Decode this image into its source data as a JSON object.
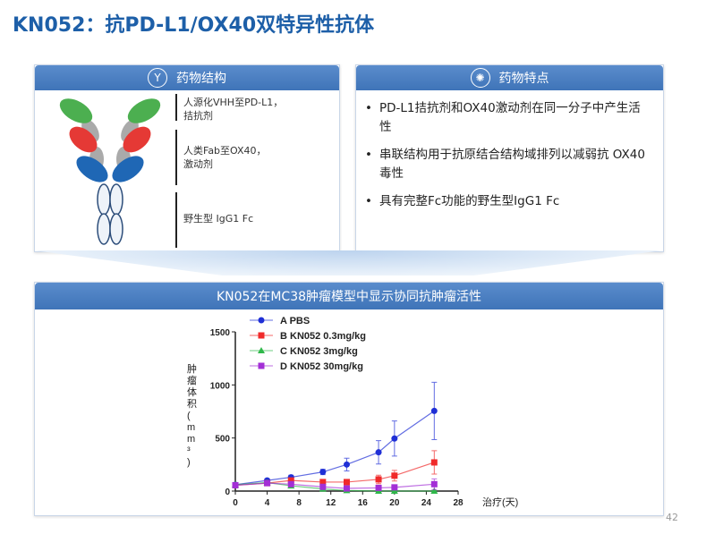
{
  "title": "KN052：抗PD-L1/OX40双特异性抗体",
  "left_panel": {
    "header": "药物结构",
    "icon": "antibody-icon",
    "labels": [
      "人源化VHH至PD-L1，\n拮抗剂",
      "人类Fab至OX40，\n激动剂",
      "野生型 IgG1 Fc"
    ]
  },
  "right_panel": {
    "header": "药物特点",
    "icon": "target-icon",
    "bullets": [
      "PD-L1拮抗剂和OX40激动剂在同一分子中产生活性",
      "串联结构用于抗原结合结构域排列以减弱抗 OX40毒性",
      "具有完整Fc功能的野生型IgG1 Fc"
    ]
  },
  "bottom_panel": {
    "header": "KN052在MC38肿瘤模型中显示协同抗肿瘤活性"
  },
  "page_number": "42",
  "chart_data": {
    "type": "line",
    "xlabel": "治疗(天)",
    "ylabel": "肿瘤体积(mm³)",
    "xlim": [
      0,
      28
    ],
    "ylim": [
      0,
      1500
    ],
    "xticks": [
      "0",
      "4",
      "8",
      "12",
      "16",
      "20",
      "24",
      "28"
    ],
    "yticks": [
      "0",
      "500",
      "1000",
      "1500"
    ],
    "legend": "top-left",
    "x": [
      0,
      4,
      7,
      11,
      14,
      18,
      20,
      25
    ],
    "series": [
      {
        "name": "A PBS",
        "color": "#1f2fd6",
        "marker": "circle",
        "values": [
          60,
          100,
          130,
          180,
          250,
          365,
          495,
          755
        ],
        "errors": [
          10,
          15,
          20,
          25,
          60,
          110,
          165,
          270
        ]
      },
      {
        "name": "B KN052 0.3mg/kg",
        "color": "#f02a2a",
        "marker": "square",
        "values": [
          55,
          75,
          100,
          85,
          85,
          110,
          145,
          270
        ],
        "errors": [
          10,
          15,
          20,
          20,
          25,
          40,
          50,
          110
        ]
      },
      {
        "name": "C KN052 3mg/kg",
        "color": "#2fb84a",
        "marker": "triangle",
        "values": [
          60,
          80,
          50,
          20,
          5,
          0,
          0,
          0
        ],
        "errors": [
          10,
          10,
          10,
          10,
          5,
          5,
          5,
          5
        ]
      },
      {
        "name": "D KN052 30mg/kg",
        "color": "#a32fd6",
        "marker": "square",
        "values": [
          55,
          75,
          65,
          40,
          25,
          30,
          35,
          65
        ],
        "errors": [
          10,
          10,
          10,
          10,
          10,
          10,
          15,
          50
        ]
      }
    ]
  }
}
